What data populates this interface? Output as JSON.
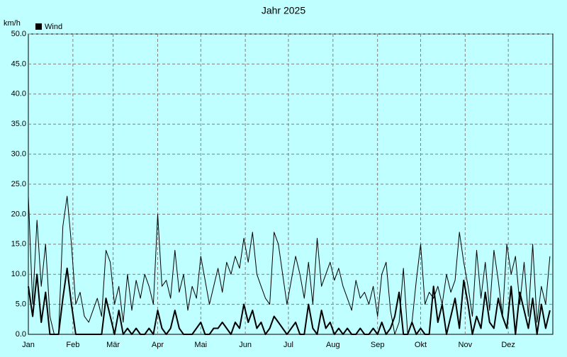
{
  "chart_data": {
    "type": "line",
    "title": "Jahr 2025",
    "y_label": "km/h",
    "x": [
      0,
      3,
      6,
      9,
      12,
      15,
      18,
      21,
      24,
      27,
      30,
      33,
      36,
      39,
      42,
      45,
      48,
      51,
      54,
      57,
      60,
      63,
      66,
      69,
      72,
      75,
      78,
      81,
      84,
      87,
      90,
      93,
      96,
      99,
      102,
      105,
      108,
      111,
      114,
      117,
      120,
      123,
      126,
      129,
      132,
      135,
      138,
      141,
      144,
      147,
      150,
      153,
      156,
      159,
      162,
      165,
      168,
      171,
      174,
      177,
      180,
      183,
      186,
      189,
      192,
      195,
      198,
      201,
      204,
      207,
      210,
      213,
      216,
      219,
      222,
      225,
      228,
      231,
      234,
      237,
      240,
      243,
      246,
      249,
      252,
      255,
      258,
      261,
      264,
      267,
      270,
      273,
      276,
      279,
      282,
      285,
      288,
      291,
      294,
      297,
      300,
      303,
      306,
      309,
      312,
      315,
      318,
      321,
      324,
      327,
      330,
      333,
      336,
      339,
      342,
      345,
      348,
      351,
      354,
      357,
      360,
      363
    ],
    "series": [
      {
        "name": "Wind",
        "color": "#000000",
        "values": [
          8,
          3,
          10,
          2,
          7,
          0,
          0,
          0,
          6,
          11,
          5,
          0,
          0,
          0,
          0,
          0,
          0,
          0,
          6,
          3,
          0,
          4,
          0,
          1,
          0,
          1,
          0,
          0,
          1,
          0,
          4,
          1,
          0,
          1,
          4,
          1,
          0,
          0,
          0,
          1,
          2,
          0,
          0,
          1,
          1,
          2,
          1,
          0,
          2,
          1,
          5,
          2,
          4,
          1,
          2,
          0,
          1,
          3,
          2,
          1,
          0,
          1,
          2,
          0,
          0,
          5,
          1,
          0,
          4,
          1,
          2,
          0,
          1,
          0,
          1,
          0,
          0,
          1,
          0,
          0,
          1,
          0,
          2,
          0,
          1,
          3,
          7,
          0,
          0,
          2,
          0,
          1,
          0,
          0,
          8,
          2,
          5,
          0,
          3,
          6,
          1,
          9,
          5,
          0,
          3,
          1,
          7,
          2,
          1,
          6,
          3,
          1,
          8,
          0,
          7,
          4,
          1,
          6,
          0,
          5,
          1,
          4
        ]
      },
      {
        "color": "#000000",
        "values": [
          23,
          5,
          19,
          8,
          15,
          3,
          0,
          0,
          18,
          23,
          15,
          5,
          7,
          3,
          2,
          4,
          6,
          3,
          14,
          12,
          5,
          8,
          2,
          10,
          4,
          9,
          6,
          10,
          8,
          5,
          20,
          8,
          9,
          6,
          14,
          7,
          10,
          4,
          8,
          6,
          13,
          9,
          5,
          8,
          11,
          7,
          12,
          10,
          13,
          11,
          16,
          12,
          17,
          10,
          8,
          6,
          5,
          17,
          15,
          10,
          5,
          9,
          13,
          10,
          6,
          12,
          5,
          16,
          8,
          10,
          12,
          9,
          11,
          8,
          6,
          4,
          9,
          6,
          7,
          5,
          8,
          3,
          10,
          12,
          4,
          0,
          2,
          11,
          0,
          2,
          9,
          15,
          5,
          7,
          6,
          8,
          5,
          10,
          7,
          9,
          17,
          12,
          8,
          3,
          14,
          6,
          12,
          4,
          14,
          9,
          3,
          15,
          10,
          13,
          5,
          12,
          3,
          15,
          2,
          8,
          5,
          13
        ]
      }
    ],
    "xlim": [
      0,
      365
    ],
    "xticks": [
      {
        "value": 0,
        "label": "Jan"
      },
      {
        "value": 31,
        "label": "Feb"
      },
      {
        "value": 59,
        "label": "Mär"
      },
      {
        "value": 90,
        "label": "Apr"
      },
      {
        "value": 120,
        "label": "Mai"
      },
      {
        "value": 151,
        "label": "Jun"
      },
      {
        "value": 181,
        "label": "Jul"
      },
      {
        "value": 212,
        "label": "Aug"
      },
      {
        "value": 243,
        "label": "Sep"
      },
      {
        "value": 273,
        "label": "Okt"
      },
      {
        "value": 304,
        "label": "Nov"
      },
      {
        "value": 334,
        "label": "Dez"
      }
    ],
    "ylim": [
      0,
      50
    ],
    "yticks": [
      {
        "value": 0,
        "label": "0.0"
      },
      {
        "value": 5,
        "label": "5.0"
      },
      {
        "value": 10,
        "label": "10.0"
      },
      {
        "value": 15,
        "label": "15.0"
      },
      {
        "value": 20,
        "label": "20.0"
      },
      {
        "value": 25,
        "label": "25.0"
      },
      {
        "value": 30,
        "label": "30.0"
      },
      {
        "value": 35,
        "label": "35.0"
      },
      {
        "value": 40,
        "label": "40.0"
      },
      {
        "value": 45,
        "label": "45.0"
      },
      {
        "value": 50,
        "label": "50.0"
      }
    ],
    "grid": true
  }
}
